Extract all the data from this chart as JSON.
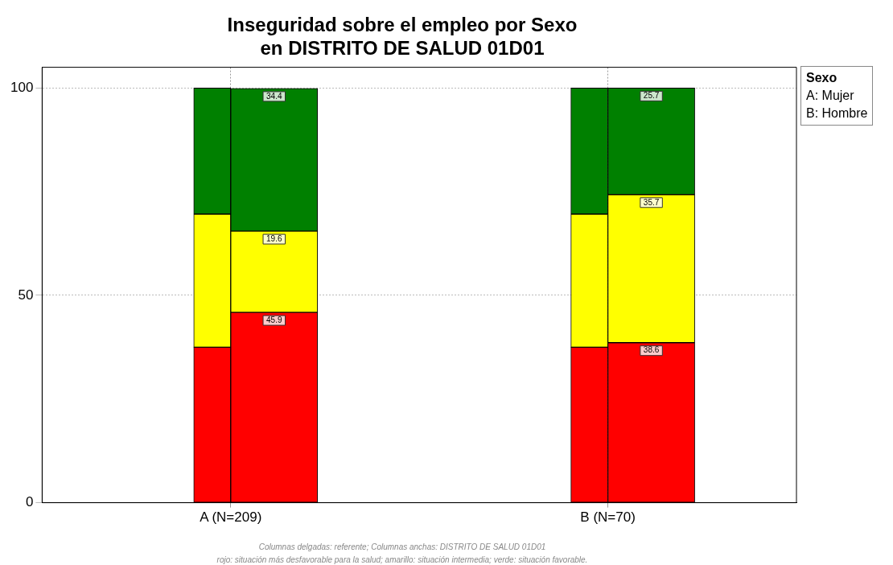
{
  "chart_data": {
    "type": "bar",
    "title": "Inseguridad sobre el empleo por Sexo\nen DISTRITO DE SALUD 01D01",
    "legend_title": "Sexo",
    "categories": [
      "A (N=209)",
      "B (N=70)"
    ],
    "ylim": [
      0,
      105
    ],
    "yticks": [
      0,
      50,
      100
    ],
    "grid": true,
    "legend": false,
    "series": [
      {
        "color": "#ff0000",
        "values": [
          37.5,
          37.5
        ],
        "base": [
          0,
          0
        ]
      },
      {
        "color": "#ffff00",
        "values": [
          32.1,
          32.1
        ],
        "base": [
          37.5,
          37.5
        ]
      },
      {
        "color": "#008000",
        "values": [
          30.4,
          30.4
        ],
        "base": [
          69.6,
          69.6
        ]
      },
      {
        "color": "#ff0000",
        "values": [
          45.9,
          38.6
        ],
        "base": [
          0,
          0
        ],
        "value_labels": [
          "45.9",
          "38.6"
        ]
      },
      {
        "color": "#ffff00",
        "values": [
          19.6,
          35.7
        ],
        "base": [
          45.9,
          38.6
        ],
        "value_labels": [
          "19.6",
          "35.7"
        ]
      },
      {
        "color": "#008000",
        "values": [
          34.4,
          25.7
        ],
        "base": [
          65.5,
          74.3
        ],
        "value_labels": [
          "34.4",
          "25.7"
        ]
      }
    ],
    "annotations": [
      "A: Mujer",
      "B: Hombre",
      "Columnas delgadas: referente; Columnas anchas: DISTRITO DE SALUD 01D01",
      "rojo: situación más desfavorable para la salud; amarillo: situación intermedia; verde: situación favorable."
    ]
  }
}
